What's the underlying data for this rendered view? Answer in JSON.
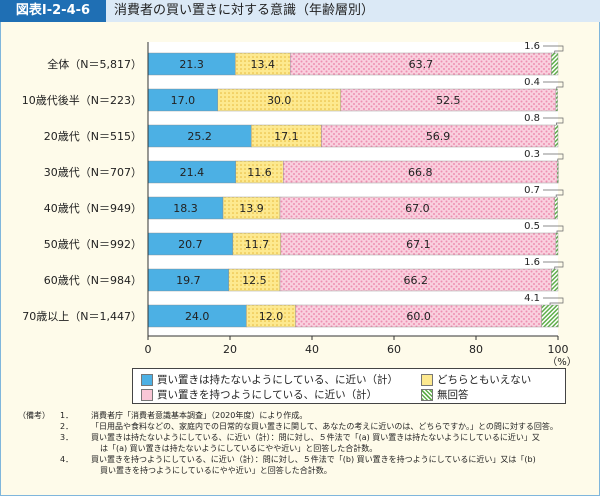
{
  "header": {
    "id": "図表Ⅰ-2-4-6",
    "title": "消費者の買い置きに対する意識（年齢層別）"
  },
  "colors": {
    "s0": "#4cb0e4",
    "s1": "#fce27a",
    "s2": "#f7c0d3",
    "s3": "#a9d49a"
  },
  "chart_data": {
    "type": "bar",
    "orientation": "horizontal",
    "stacked": true,
    "categories": [
      "全体（N＝5,817）",
      "10歳代後半（N＝223）",
      "20歳代（N＝515）",
      "30歳代（N＝707）",
      "40歳代（N＝949）",
      "50歳代（N＝992）",
      "60歳代（N＝984）",
      "70歳以上（N＝1,447）"
    ],
    "series": [
      {
        "name": "買い置きは持たないようにしている、に近い（計）",
        "values": [
          21.3,
          17.0,
          25.2,
          21.4,
          18.3,
          20.7,
          19.7,
          24.0
        ]
      },
      {
        "name": "どちらともいえない",
        "values": [
          13.4,
          30.0,
          17.1,
          11.6,
          13.9,
          11.7,
          12.5,
          12.0
        ]
      },
      {
        "name": "買い置きを持つようにしている、に近い（計）",
        "values": [
          63.7,
          52.5,
          56.9,
          66.8,
          67.0,
          67.1,
          66.2,
          60.0
        ]
      },
      {
        "name": "無回答",
        "values": [
          1.6,
          0.4,
          0.8,
          0.3,
          0.7,
          0.5,
          1.6,
          4.1
        ]
      }
    ],
    "xlim": [
      0,
      100
    ],
    "xticks": [
      "0",
      "20",
      "40",
      "60",
      "80",
      "100"
    ],
    "xunit": "（%）",
    "legend": "bottom"
  },
  "notes": {
    "head": "（備考）",
    "items": [
      [
        "1．",
        "消費者庁「消費者意識基本調査」（2020年度）により作成。"
      ],
      [
        "2．",
        "「日用品や食料などの、家庭内での日常的な買い置きに関して、あなたの考えに近いのは、どちらですか。」との問に対する回答。"
      ],
      [
        "3．",
        "買い置きは持たないようにしている、に近い（計）：問に対し、５件法で「(a) 買い置きは持たないようにしているに近い」又"
      ],
      [
        "",
        "は「(a) 買い置きは持たないようにしているにやや近い」と回答した合計数。"
      ],
      [
        "4．",
        "買い置きを持つようにしている、に近い（計）：問に対し、５件法で「(b) 買い置きを持つようにしているに近い」又は「(b)"
      ],
      [
        "",
        "買い置きを持つようにしているにやや近い」と回答した合計数。"
      ]
    ]
  }
}
